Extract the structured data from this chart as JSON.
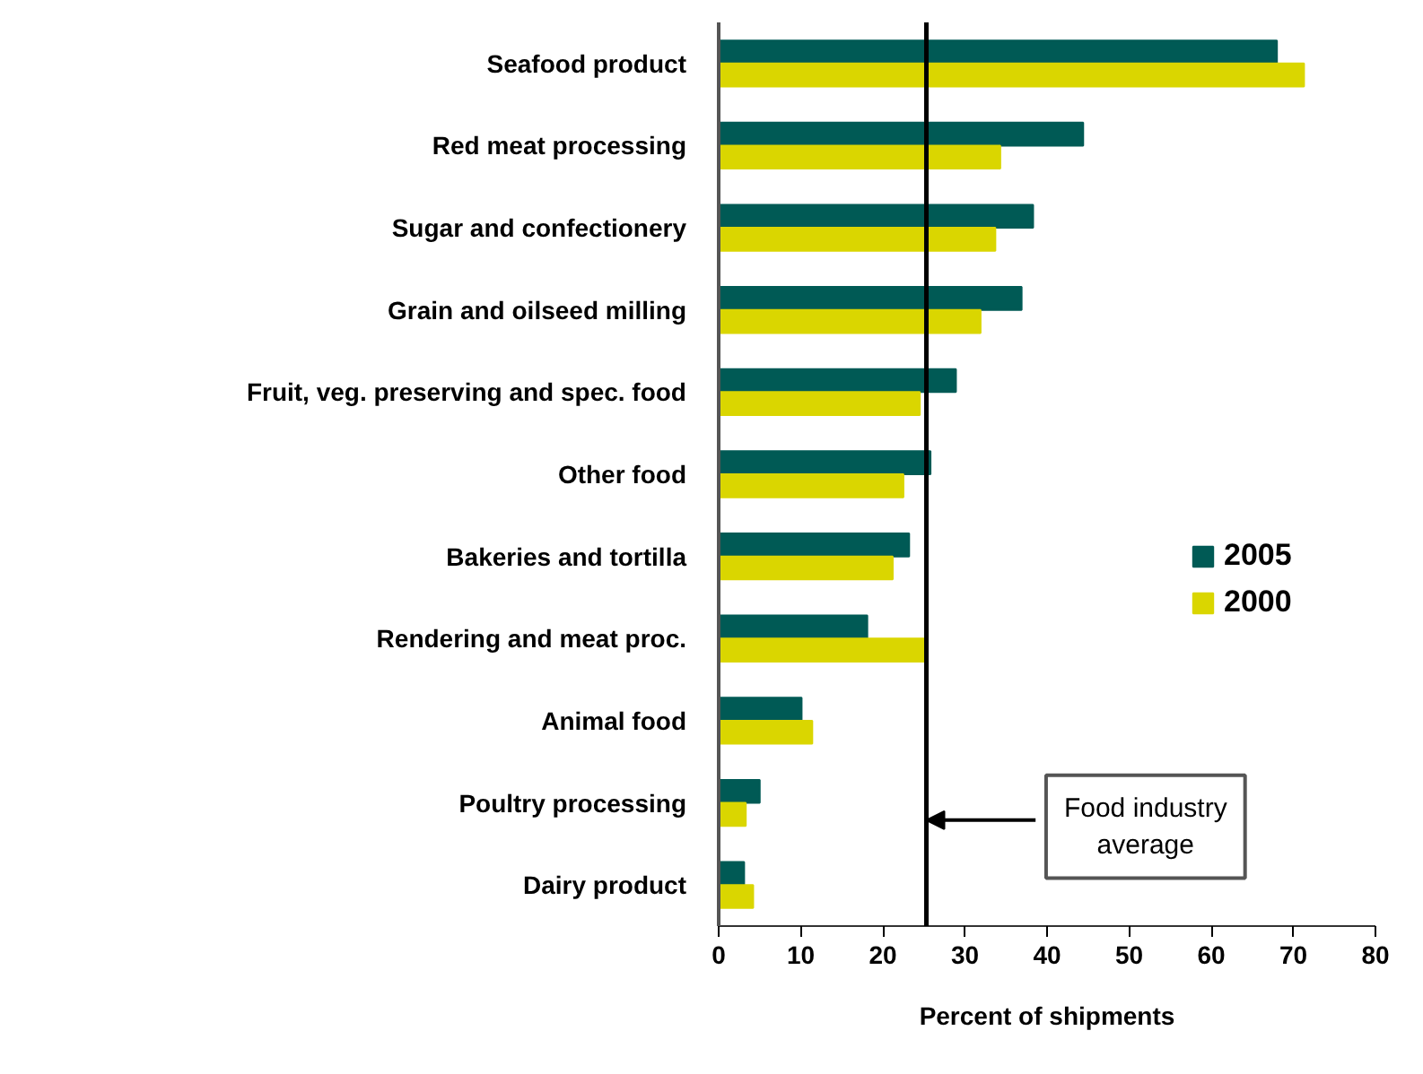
{
  "chart_data": {
    "type": "bar",
    "orientation": "horizontal",
    "categories": [
      "Seafood product",
      "Red meat processing",
      "Sugar and confectionery",
      "Grain and oilseed milling",
      "Fruit, veg. preserving and spec. food",
      "Other food",
      "Bakeries and tortilla",
      "Rendering and meat proc.",
      "Animal food",
      "Poultry processing",
      "Dairy product"
    ],
    "series": [
      {
        "name": "2005",
        "color": "#005a55",
        "values": [
          68.0,
          44.4,
          38.3,
          36.9,
          28.9,
          25.8,
          23.2,
          18.1,
          10.1,
          5.0,
          3.1
        ]
      },
      {
        "name": "2000",
        "color": "#dad600",
        "values": [
          71.3,
          34.3,
          33.7,
          31.9,
          24.5,
          22.5,
          21.2,
          25.1,
          11.4,
          3.3,
          4.2
        ]
      }
    ],
    "xlabel": "Percent of shipments",
    "xlim": [
      0,
      80
    ],
    "xticks": [
      0,
      10,
      20,
      30,
      40,
      50,
      60,
      70,
      80
    ],
    "ref_lines": [
      {
        "axis": "x",
        "value": 25.3,
        "label": "Food industry average",
        "color": "#000000"
      }
    ],
    "legend": "right",
    "grid": false
  }
}
